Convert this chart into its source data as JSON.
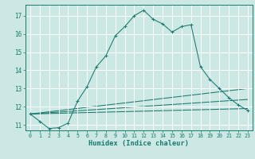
{
  "title": "",
  "xlabel": "Humidex (Indice chaleur)",
  "ylabel": "",
  "background_color": "#cce8e4",
  "grid_color": "#ffffff",
  "line_color": "#1a7a6e",
  "xlim": [
    -0.5,
    23.5
  ],
  "ylim": [
    10.7,
    17.6
  ],
  "yticks": [
    11,
    12,
    13,
    14,
    15,
    16,
    17
  ],
  "xticks": [
    0,
    1,
    2,
    3,
    4,
    5,
    6,
    7,
    8,
    9,
    10,
    11,
    12,
    13,
    14,
    15,
    16,
    17,
    18,
    19,
    20,
    21,
    22,
    23
  ],
  "main_line": {
    "x": [
      0,
      1,
      2,
      3,
      4,
      5,
      6,
      7,
      8,
      9,
      10,
      11,
      12,
      13,
      14,
      15,
      16,
      17,
      18,
      19,
      20,
      21,
      22,
      23
    ],
    "y": [
      11.6,
      11.2,
      10.8,
      10.85,
      11.1,
      12.3,
      13.1,
      14.2,
      14.8,
      15.9,
      16.4,
      17.0,
      17.3,
      16.8,
      16.55,
      16.1,
      16.4,
      16.5,
      14.2,
      13.5,
      13.0,
      12.5,
      12.1,
      11.8
    ]
  },
  "flat_line1": {
    "x": [
      0,
      23
    ],
    "y": [
      11.6,
      11.9
    ]
  },
  "flat_line2": {
    "x": [
      0,
      23
    ],
    "y": [
      11.6,
      12.4
    ]
  },
  "flat_line3": {
    "x": [
      0,
      23
    ],
    "y": [
      11.6,
      13.0
    ]
  }
}
